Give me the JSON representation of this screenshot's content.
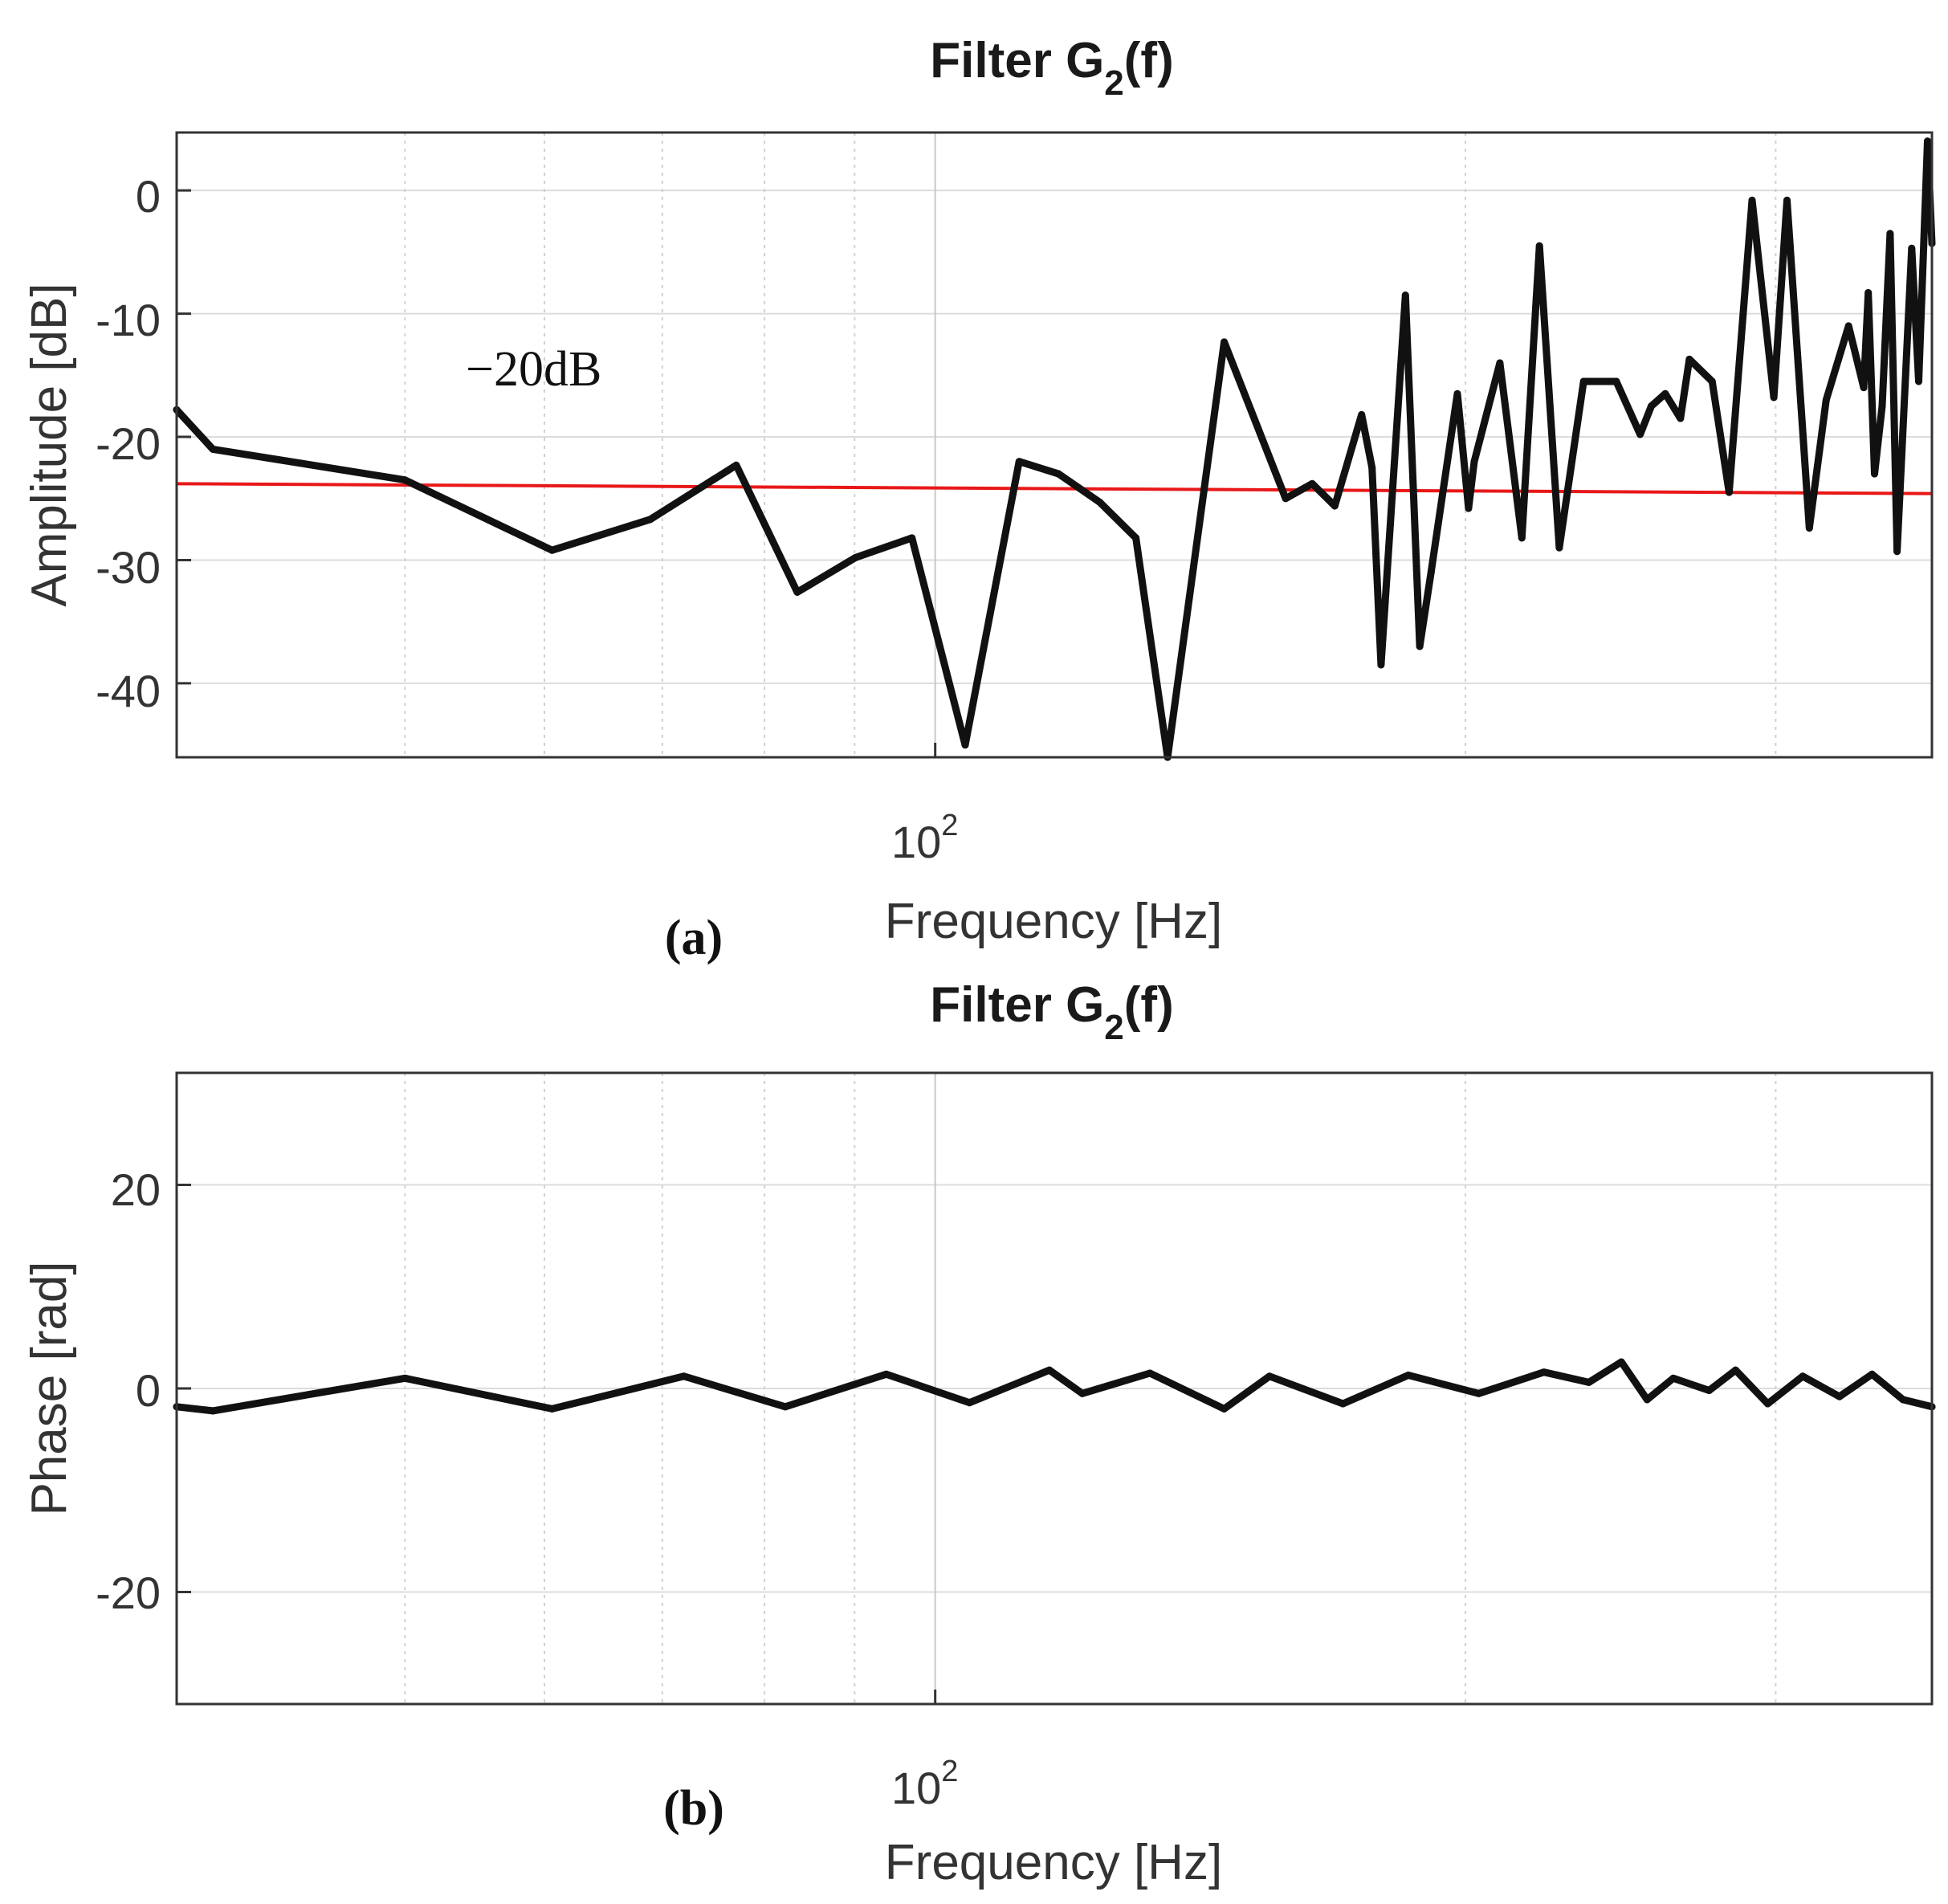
{
  "chart_data": [
    {
      "type": "line",
      "panel": "a",
      "title": "Filter G",
      "title_sub": "2",
      "title_tail": "(f)",
      "panel_label": "(a)",
      "xlabel": "Frequency [Hz]",
      "ylabel": "Amplitude [dB]",
      "xscale": "log",
      "xlim": [
        37.1,
        368
      ],
      "ylim": [
        -46,
        4.7
      ],
      "yticks": [
        0,
        -10,
        -20,
        -30,
        -40
      ],
      "ytick_labels": [
        "0",
        "-10",
        "-20",
        "-30",
        "-40"
      ],
      "xtick_base": "10",
      "xtick_exp": "2",
      "xtick_value": 100,
      "minor_x_gridlines": [
        50,
        60,
        70,
        80,
        90,
        200,
        300
      ],
      "grid": true,
      "annotation": "−20dB",
      "reference_line": {
        "name": "level",
        "color": "#e81818",
        "x": [
          37.1,
          368
        ],
        "y": [
          -23.8,
          -24.6
        ]
      },
      "series": [
        {
          "name": "Amplitude",
          "color": "#111111",
          "x": [
            37.1,
            38.9,
            50.0,
            60.6,
            68.9,
            77.1,
            83.5,
            90.1,
            97.0,
            104.0,
            111.6,
            117.5,
            124.0,
            130.0,
            135.5,
            145.9,
            158.1,
            163.7,
            168.6,
            174.6,
            177.0,
            179.1,
            184.9,
            188.4,
            191.2,
            197.9,
            200.8,
            202.3,
            209.2,
            215.3,
            220.3,
            226.1,
            233.4,
            243.6,
            251.3,
            255.0,
            259.7,
            264.9,
            268.0,
            276.1,
            282.3,
            290.9,
            299.3,
            304.5,
            313.5,
            320.5,
            330.0,
            336.6,
            338.6,
            341.4,
            344.8,
            348.4,
            351.6,
            358.4,
            361.7,
            365.9,
            368.0
          ],
          "y": [
            -17.8,
            -21.0,
            -23.5,
            -29.2,
            -26.7,
            -22.3,
            -32.6,
            -29.8,
            -28.2,
            -45.0,
            -22.0,
            -23.0,
            -25.3,
            -28.2,
            -46.0,
            -12.3,
            -25.0,
            -23.8,
            -25.6,
            -18.2,
            -22.5,
            -38.5,
            -8.5,
            -37.0,
            -31.0,
            -16.5,
            -25.8,
            -22.0,
            -14.0,
            -28.2,
            -4.5,
            -29.0,
            -15.5,
            -15.5,
            -19.8,
            -17.5,
            -16.5,
            -18.5,
            -13.7,
            -15.5,
            -24.5,
            -0.8,
            -16.8,
            -0.8,
            -27.4,
            -17.0,
            -11.0,
            -16.0,
            -8.3,
            -23.0,
            -17.5,
            -3.5,
            -29.3,
            -4.7,
            -15.5,
            4.0,
            -4.3
          ]
        }
      ]
    },
    {
      "type": "line",
      "panel": "b",
      "title": "Filter G",
      "title_sub": "2",
      "title_tail": "(f)",
      "panel_label": "(b)",
      "xlabel": "Frequency [Hz]",
      "ylabel": "Phase [rad]",
      "xscale": "log",
      "xlim": [
        37.1,
        368
      ],
      "ylim": [
        -31,
        31
      ],
      "yticks": [
        20,
        0,
        -20
      ],
      "ytick_labels": [
        "20",
        "0",
        "-20"
      ],
      "xtick_base": "10",
      "xtick_exp": "2",
      "xtick_value": 100,
      "minor_x_gridlines": [
        50,
        60,
        70,
        80,
        90,
        200,
        300
      ],
      "grid": true,
      "series": [
        {
          "name": "Phase",
          "color": "#111111",
          "x": [
            37.1,
            38.9,
            50.0,
            60.6,
            72.0,
            82.2,
            93.8,
            104.6,
            116.1,
            121.2,
            132.4,
            145.9,
            154.8,
            170.4,
            185.6,
            203.5,
            221.6,
            235.0,
            245.2,
            253.6,
            262.4,
            275.0,
            284.7,
            296.9,
            310.8,
            326.1,
            340.3,
            354.3,
            368.0
          ],
          "y": [
            -1.8,
            -2.2,
            1.0,
            -2.0,
            1.2,
            -1.8,
            1.4,
            -1.4,
            1.8,
            -0.5,
            1.5,
            -2.0,
            1.2,
            -1.5,
            1.3,
            -0.5,
            1.6,
            0.6,
            2.6,
            -1.1,
            1.0,
            -0.2,
            1.8,
            -1.5,
            1.2,
            -0.8,
            1.4,
            -1.1,
            -1.8
          ]
        }
      ]
    }
  ]
}
